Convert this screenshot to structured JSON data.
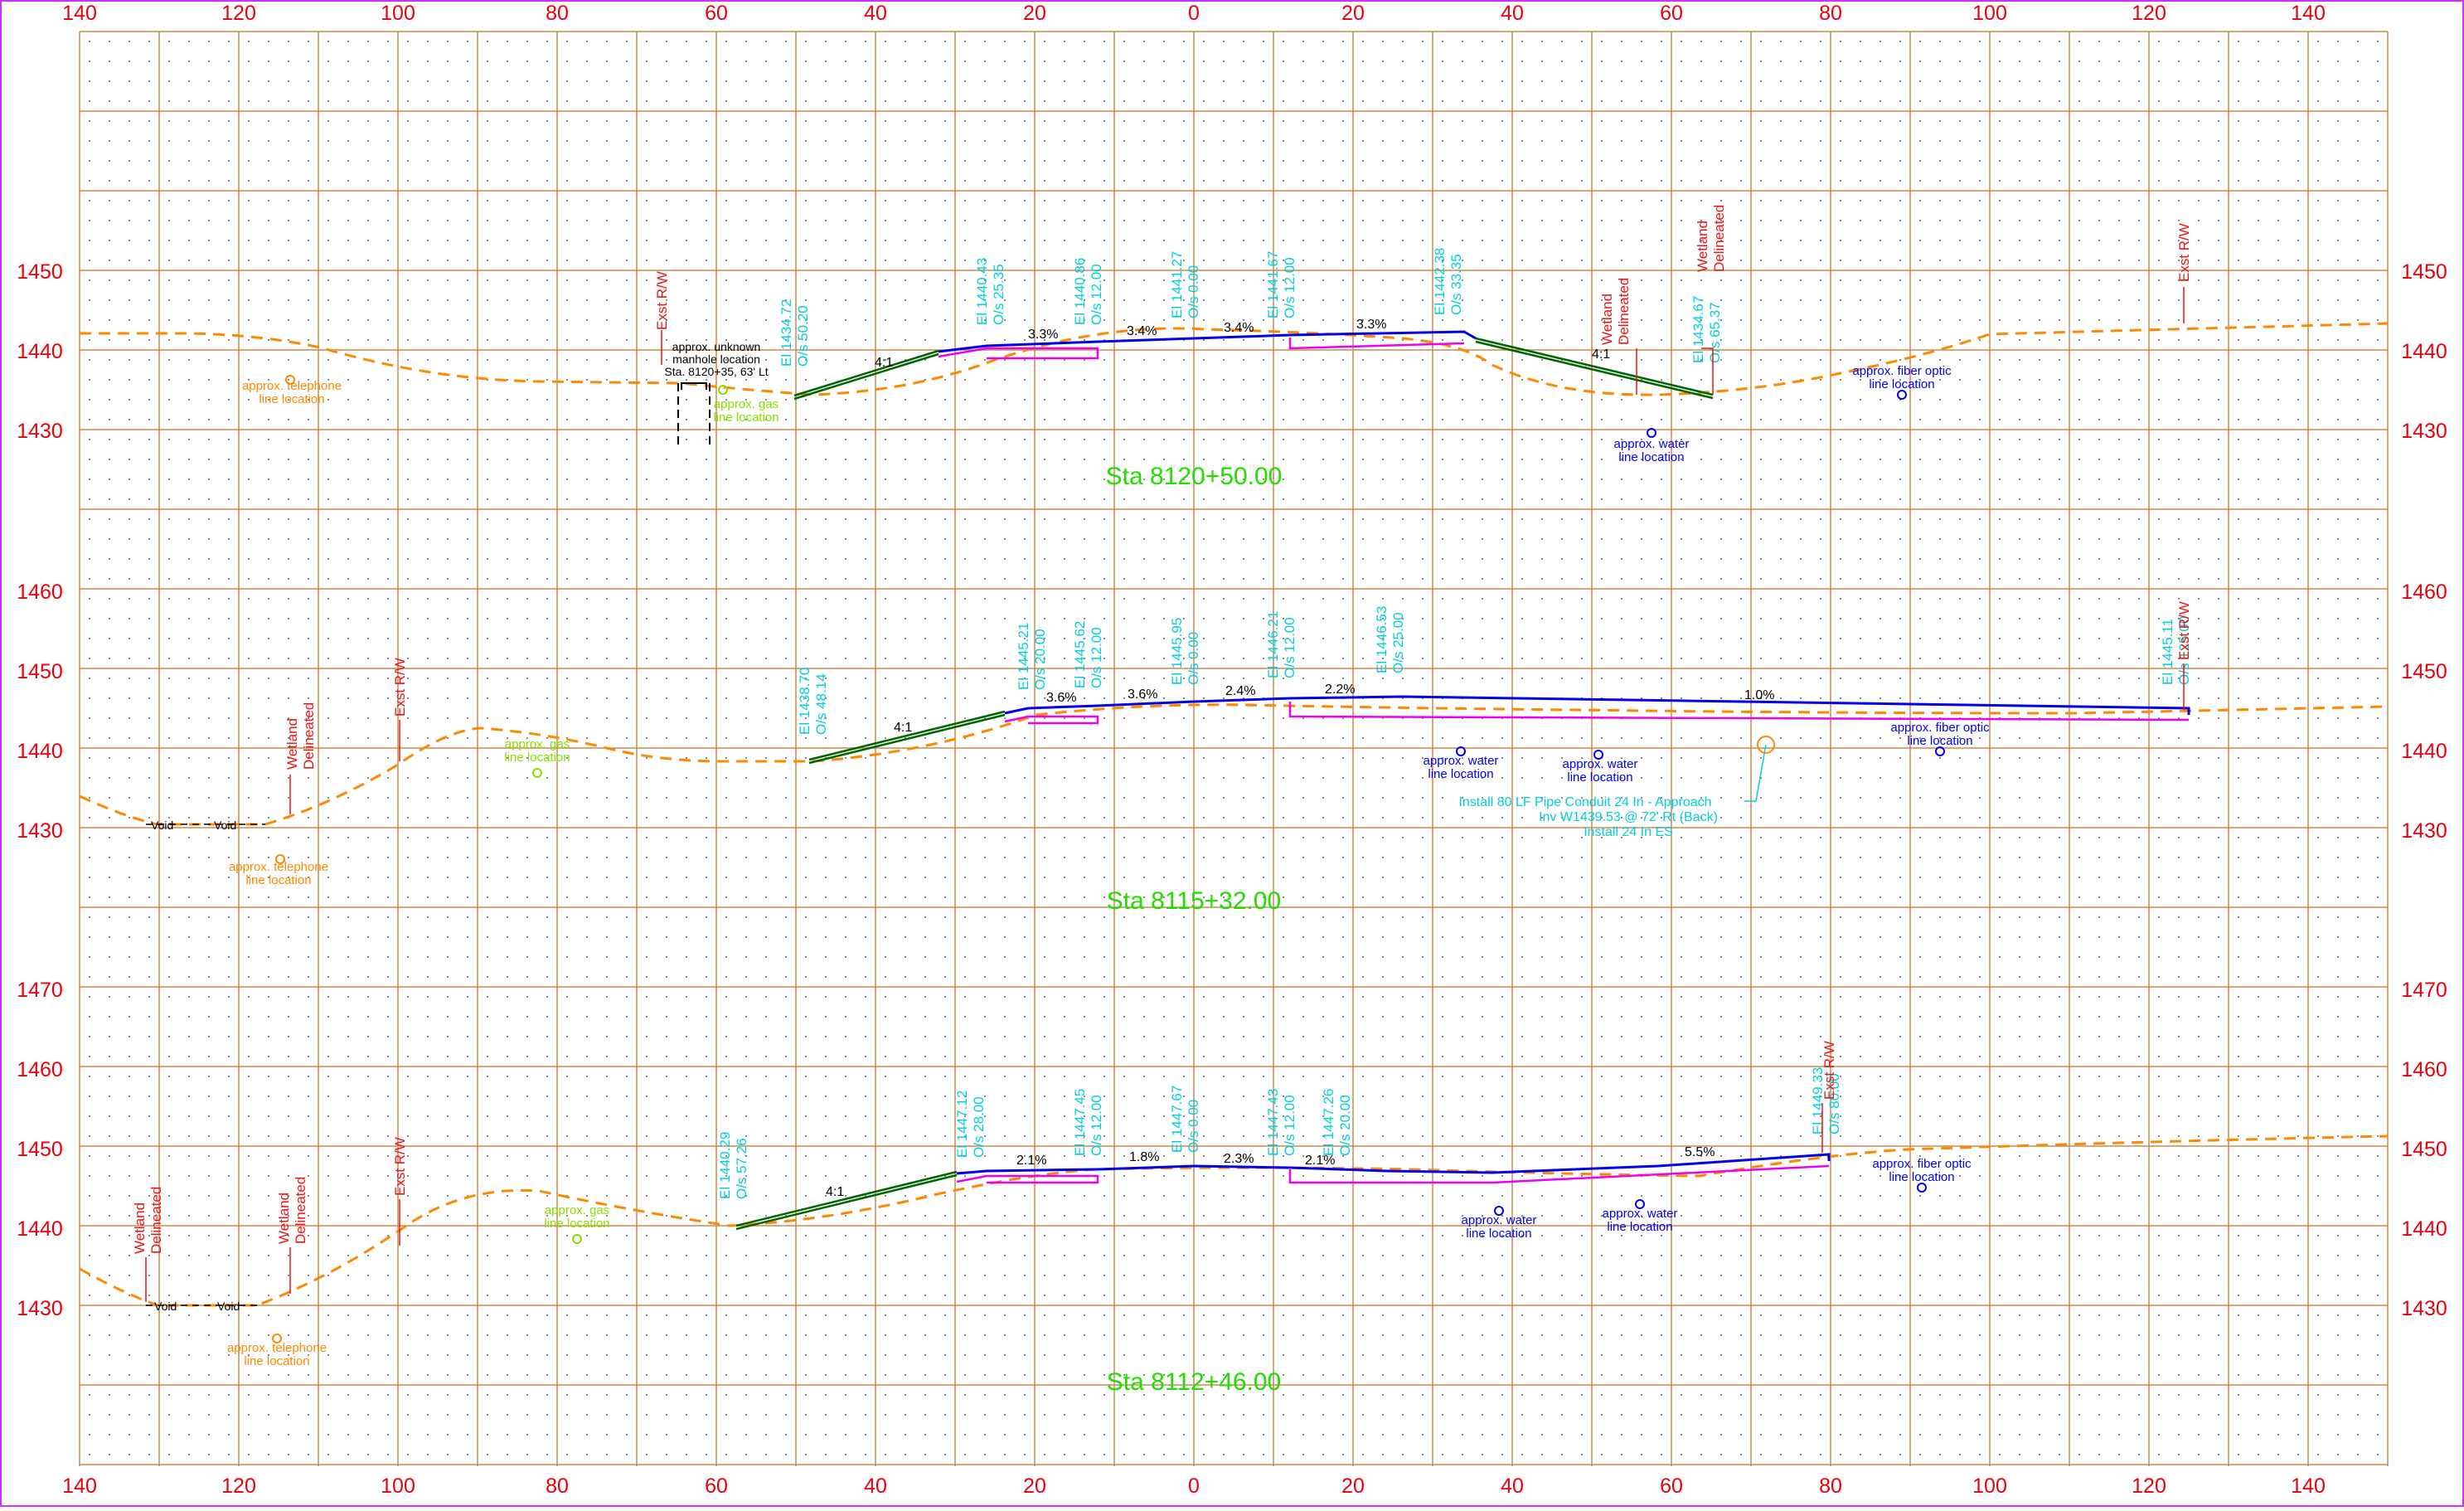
{
  "colors": {
    "grid": "#c58a52",
    "axis_text": "#e8000b",
    "cyan": "#00cfd8",
    "green": "#22dd00",
    "orange": "#ff8800",
    "blue": "#0000ee",
    "magenta": "#ee00ee",
    "darkgreen": "#006600",
    "red": "#ee1111",
    "lime": "#88dd00",
    "frame": "#cc33ff"
  },
  "offset_labels": [
    "140",
    "120",
    "100",
    "80",
    "60",
    "40",
    "20",
    "0",
    "20",
    "40",
    "60",
    "80",
    "100",
    "120",
    "140"
  ],
  "sections": [
    {
      "station": "Sta 8120+50.00",
      "elev_labels": [
        "1450",
        "1440",
        "1430"
      ],
      "slopes": [
        "4:1",
        "3.3%",
        "3.4%",
        "3.4%",
        "3.3%",
        "4:1"
      ],
      "points": [
        {
          "el": "El 1434.72",
          "os": "O/s 50.20"
        },
        {
          "el": "El 1440.43",
          "os": "O/s 25.35"
        },
        {
          "el": "El 1440.86",
          "os": "O/s 12.00"
        },
        {
          "el": "El 1441.27",
          "os": "O/s 0.00"
        },
        {
          "el": "El 1441.67",
          "os": "O/s 12.00"
        },
        {
          "el": "El 1442.38",
          "os": "O/s 33.35"
        },
        {
          "el": "El 1434.67",
          "os": "O/s 65.37"
        }
      ],
      "row_labels": [
        "Exst R/W",
        "Wetland",
        "Delineated",
        "Wetland",
        "Delineated",
        "Exst R/W"
      ],
      "utilities": [
        {
          "l1": "approx. telephone",
          "l2": "line location"
        },
        {
          "l1": "approx. gas",
          "l2": "line location"
        },
        {
          "l1": "approx. water",
          "l2": "line location"
        },
        {
          "l1": "approx. fiber optic",
          "l2": "line location"
        }
      ],
      "manhole": [
        "approx. unknown",
        "manhole location",
        "Sta. 8120+35, 63' Lt"
      ]
    },
    {
      "station": "Sta 8115+32.00",
      "elev_labels": [
        "1460",
        "1450",
        "1440",
        "1430"
      ],
      "slopes": [
        "4:1",
        "3.6%",
        "3.6%",
        "2.4%",
        "2.2%",
        "1.0%"
      ],
      "points": [
        {
          "el": "El 1438.70",
          "os": "O/s 48.14"
        },
        {
          "el": "El 1445.21",
          "os": "O/s 20.00"
        },
        {
          "el": "El 1445.62",
          "os": "O/s 12.00"
        },
        {
          "el": "El 1445.95",
          "os": "O/s 0.00"
        },
        {
          "el": "El 1446.21",
          "os": "O/s 12.00"
        },
        {
          "el": "El 1446.53",
          "os": "O/s 25.00"
        },
        {
          "el": "El 1445.11",
          "os": "O/s 125.00"
        }
      ],
      "row_labels": [
        "Wetland",
        "Delineated",
        "Exst R/W",
        "Exst R/W"
      ],
      "voids": [
        "Void",
        "Void"
      ],
      "utilities": [
        {
          "l1": "approx. telephone",
          "l2": "line location"
        },
        {
          "l1": "approx. gas",
          "l2": "line location"
        },
        {
          "l1": "approx. water",
          "l2": "line location"
        },
        {
          "l1": "approx. water",
          "l2": "line location"
        },
        {
          "l1": "approx. fiber optic",
          "l2": "line location"
        }
      ],
      "pipe_note": [
        "Install 80 LF Pipe Conduit 24 In - Approach",
        "Inv W1439.53 @ 72' Rt (Back)",
        "Install 24 In ES"
      ]
    },
    {
      "station": "Sta 8112+46.00",
      "elev_labels": [
        "1470",
        "1460",
        "1450",
        "1440",
        "1430"
      ],
      "slopes": [
        "4:1",
        "2.1%",
        "1.8%",
        "2.3%",
        "2.1%",
        "5.5%"
      ],
      "points": [
        {
          "el": "El 1440.29",
          "os": "O/s 57.26"
        },
        {
          "el": "El 1447.12",
          "os": "O/s 28.00"
        },
        {
          "el": "El 1447.45",
          "os": "O/s 12.00"
        },
        {
          "el": "El 1447.67",
          "os": "O/s 0.00"
        },
        {
          "el": "El 1447.43",
          "os": "O/s 12.00"
        },
        {
          "el": "El 1447.26",
          "os": "O/s 20.00"
        },
        {
          "el": "El 1449.33",
          "os": "O/s 80.00"
        }
      ],
      "row_labels": [
        "Wetland",
        "Delineated",
        "Wetland",
        "Delineated",
        "Exst R/W",
        "Exst R/W"
      ],
      "voids": [
        "Void",
        "Void"
      ],
      "utilities": [
        {
          "l1": "approx. telephone",
          "l2": "line location"
        },
        {
          "l1": "approx. gas",
          "l2": "line location"
        },
        {
          "l1": "approx. water",
          "l2": "line location"
        },
        {
          "l1": "approx. water",
          "l2": "line location"
        },
        {
          "l1": "approx. fiber optic",
          "l2": "line location"
        }
      ]
    }
  ]
}
